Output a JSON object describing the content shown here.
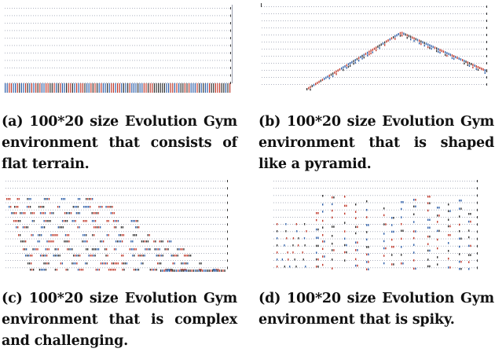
{
  "panels": [
    {
      "id": "a",
      "caption": "(a) 100*20 size Evolution Gym environment that consists of flat terrain."
    },
    {
      "id": "b",
      "caption": "(b) 100*20 size Evolution Gym environment that is shaped like a pyramid."
    },
    {
      "id": "c",
      "caption": "(c) 100*20 size Evolution Gym environment that is complex and challenging."
    },
    {
      "id": "d",
      "caption": "(d) 100*20 size Evolution Gym environment that is spiky."
    }
  ],
  "colors": {
    "dot": "#9aa0b0",
    "block_red": "#c0392b",
    "block_blue": "#2e5fa8",
    "block_dark": "#333333"
  }
}
